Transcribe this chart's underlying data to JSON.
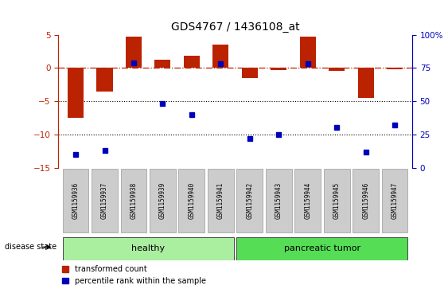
{
  "title": "GDS4767 / 1436108_at",
  "samples": [
    "GSM1159936",
    "GSM1159937",
    "GSM1159938",
    "GSM1159939",
    "GSM1159940",
    "GSM1159941",
    "GSM1159942",
    "GSM1159943",
    "GSM1159944",
    "GSM1159945",
    "GSM1159946",
    "GSM1159947"
  ],
  "transformed_count": [
    -7.5,
    -3.5,
    4.7,
    1.2,
    1.8,
    3.5,
    -1.5,
    -0.3,
    4.7,
    -0.5,
    -4.5,
    -0.2
  ],
  "percentile_rank": [
    10,
    13,
    79,
    48,
    40,
    78,
    22,
    25,
    78,
    30,
    12,
    32
  ],
  "healthy_count": 6,
  "bar_color": "#bb2200",
  "dot_color": "#0000bb",
  "ylim_left": [
    -15,
    5
  ],
  "ylim_right": [
    0,
    100
  ],
  "yticks_left": [
    -15,
    -10,
    -5,
    0,
    5
  ],
  "yticks_right": [
    0,
    25,
    50,
    75,
    100
  ],
  "dotted_lines": [
    -5,
    -10
  ],
  "healthy_color": "#aaeea0",
  "tumor_color": "#55dd55",
  "label_bg_color": "#cccccc",
  "label_edge_color": "#999999",
  "background_color": "#ffffff"
}
